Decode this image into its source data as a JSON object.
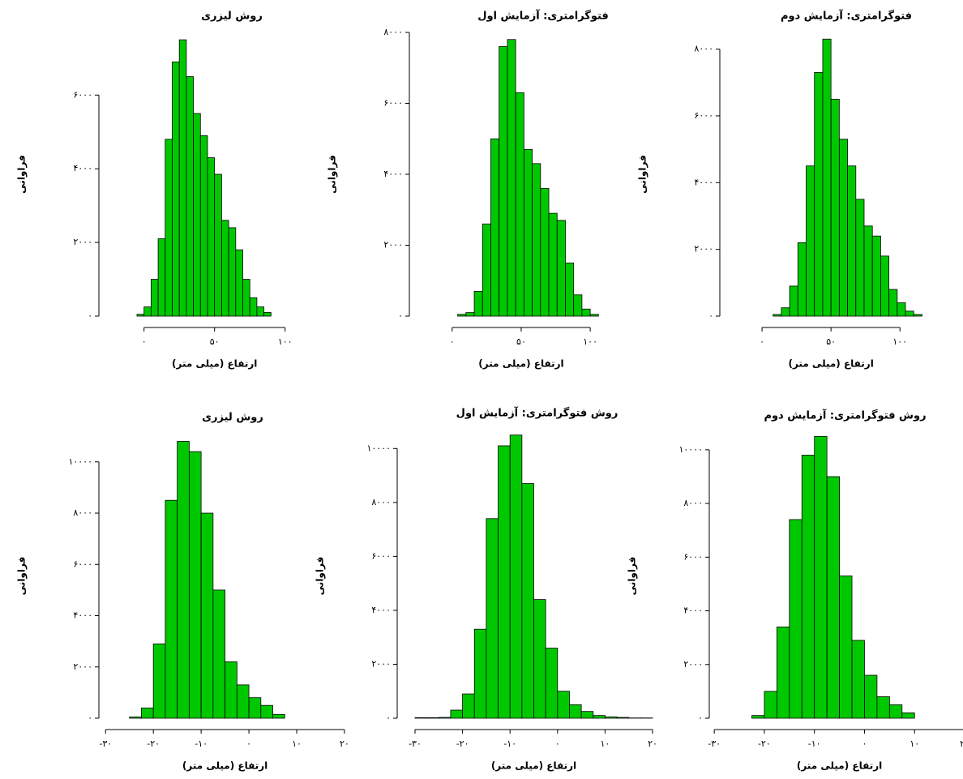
{
  "chart_data": [
    {
      "type": "histogram",
      "title": "روش لیزری",
      "xlabel": "ارتفاع (میلی متر)",
      "ylabel": "فراوانی",
      "color": "#00c800",
      "bins": [
        -5,
        0,
        5,
        10,
        15,
        20,
        25,
        30,
        35,
        40,
        45,
        50,
        55,
        60,
        65,
        70,
        75,
        80,
        85,
        90
      ],
      "values": [
        50,
        250,
        1000,
        2100,
        4800,
        6900,
        7500,
        6500,
        5500,
        4900,
        4300,
        3850,
        2600,
        2400,
        1800,
        1000,
        500,
        250,
        100
      ],
      "xlim": [
        -32,
        145
      ],
      "ylim": [
        0,
        7700
      ],
      "xticks": [
        {
          "value": 0,
          "label": "۰"
        },
        {
          "value": 50,
          "label": "۵۰"
        },
        {
          "value": 100,
          "label": "۱۰۰"
        }
      ],
      "yticks": [
        {
          "value": 0,
          "label": "۰"
        },
        {
          "value": 2000,
          "label": "۲۰۰۰"
        },
        {
          "value": 4000,
          "label": "۴۰۰۰"
        },
        {
          "value": 6000,
          "label": "۶۰۰۰"
        }
      ]
    },
    {
      "type": "histogram",
      "title": "فتوگرامتری: آزمایش اول",
      "xlabel": "ارتفاع (میلی متر)",
      "ylabel": "فراوانی",
      "color": "#00c800",
      "bins": [
        4,
        10,
        16,
        22,
        28,
        34,
        40,
        46,
        52,
        58,
        64,
        70,
        76,
        82,
        88,
        94,
        100,
        106
      ],
      "values": [
        50,
        100,
        700,
        2600,
        5000,
        7600,
        7800,
        6300,
        4700,
        4300,
        3600,
        2900,
        2700,
        1500,
        600,
        200,
        50
      ],
      "xlim": [
        -31,
        151
      ],
      "ylim": [
        0,
        8000
      ],
      "xticks": [
        {
          "value": 0,
          "label": "۰"
        },
        {
          "value": 50,
          "label": "۵۰"
        },
        {
          "value": 100,
          "label": "۱۰۰"
        }
      ],
      "yticks": [
        {
          "value": 0,
          "label": "۰"
        },
        {
          "value": 2000,
          "label": "۲۰۰۰"
        },
        {
          "value": 4000,
          "label": "۴۰۰۰"
        },
        {
          "value": 6000,
          "label": "۶۰۰۰"
        },
        {
          "value": 8000,
          "label": "۸۰۰۰"
        }
      ]
    },
    {
      "type": "histogram",
      "title": "فتوگرامتری: آزمایش دوم",
      "xlabel": "ارتفاع (میلی متر)",
      "ylabel": "فراوانی",
      "color": "#00c800",
      "bins": [
        8,
        14,
        20,
        26,
        32,
        38,
        44,
        50,
        56,
        62,
        68,
        74,
        80,
        86,
        92,
        98,
        104,
        110,
        116
      ],
      "values": [
        50,
        250,
        900,
        2200,
        4500,
        7300,
        8300,
        6500,
        5300,
        4500,
        3500,
        2700,
        2400,
        1800,
        800,
        400,
        150,
        50
      ],
      "xlim": [
        -30.6,
        141
      ],
      "ylim": [
        0,
        8500
      ],
      "xticks": [
        {
          "value": 0,
          "label": "۰"
        },
        {
          "value": 50,
          "label": "۵۰"
        },
        {
          "value": 100,
          "label": "۱۰۰"
        }
      ],
      "yticks": [
        {
          "value": 0,
          "label": "۰"
        },
        {
          "value": 2000,
          "label": "۲۰۰۰"
        },
        {
          "value": 4000,
          "label": "۴۰۰۰"
        },
        {
          "value": 6000,
          "label": "۶۰۰۰"
        },
        {
          "value": 8000,
          "label": "۸۰۰۰"
        }
      ]
    },
    {
      "type": "histogram",
      "title": "روش لیزری",
      "xlabel": "ارتفاع (میلی متر)",
      "ylabel": "فراوانی",
      "color": "#00c800",
      "bins": [
        -25,
        -22.5,
        -20,
        -17.5,
        -15,
        -12.5,
        -10,
        -7.5,
        -5,
        -2.5,
        0,
        2.5,
        5,
        7.5
      ],
      "values": [
        50,
        400,
        2900,
        8500,
        10800,
        10400,
        8000,
        5000,
        2200,
        1300,
        800,
        500,
        150
      ],
      "xlim": [
        -31.4,
        21.2
      ],
      "ylim": [
        0,
        11100
      ],
      "xticks": [
        {
          "value": -30,
          "label": "-۳۰"
        },
        {
          "value": -20,
          "label": "-۲۰"
        },
        {
          "value": -10,
          "label": "-۱۰"
        },
        {
          "value": 0,
          "label": "۰"
        },
        {
          "value": 10,
          "label": "۱۰"
        },
        {
          "value": 20,
          "label": "۲۰"
        }
      ],
      "yticks": [
        {
          "value": 0,
          "label": "۰"
        },
        {
          "value": 2000,
          "label": "۲۰۰۰"
        },
        {
          "value": 4000,
          "label": "۴۰۰۰"
        },
        {
          "value": 6000,
          "label": "۶۰۰۰"
        },
        {
          "value": 8000,
          "label": "۸۰۰۰"
        },
        {
          "value": 10000,
          "label": "۱۰۰۰۰"
        }
      ]
    },
    {
      "type": "histogram",
      "title": "روش فتوگرامتری: آزمایش اول",
      "xlabel": "ارتفاع (میلی متر)",
      "ylabel": "فراوانی",
      "color": "#00c800",
      "bins": [
        -30,
        -27.5,
        -25,
        -22.5,
        -20,
        -17.5,
        -15,
        -12.5,
        -10,
        -7.5,
        -5,
        -2.5,
        0,
        2.5,
        5,
        7.5,
        10,
        12.5,
        15,
        17.5,
        20
      ],
      "values": [
        20,
        20,
        30,
        300,
        900,
        3300,
        7400,
        10100,
        10500,
        8700,
        4400,
        2600,
        1000,
        500,
        250,
        100,
        50,
        30,
        10,
        10
      ],
      "xlim": [
        -33.75,
        21.7
      ],
      "ylim": [
        0,
        10550
      ],
      "xticks": [
        {
          "value": -30,
          "label": "-۳۰"
        },
        {
          "value": -20,
          "label": "-۲۰"
        },
        {
          "value": -10,
          "label": "-۱۰"
        },
        {
          "value": 0,
          "label": "۰"
        },
        {
          "value": 10,
          "label": "۱۰"
        },
        {
          "value": 20,
          "label": "۲۰"
        }
      ],
      "yticks": [
        {
          "value": 0,
          "label": "۰"
        },
        {
          "value": 2000,
          "label": "۲۰۰۰"
        },
        {
          "value": 4000,
          "label": "۴۰۰۰"
        },
        {
          "value": 6000,
          "label": "۶۰۰۰"
        },
        {
          "value": 8000,
          "label": "۸۰۰۰"
        },
        {
          "value": 10000,
          "label": "۱۰۰۰۰"
        }
      ]
    },
    {
      "type": "histogram",
      "title": "روش فتوگرامتری: آزمایش دوم",
      "xlabel": "ارتفاع (میلی متر)",
      "ylabel": "فراوانی",
      "color": "#00c800",
      "bins": [
        -22.5,
        -20,
        -17.5,
        -15,
        -12.5,
        -10,
        -7.5,
        -5,
        -2.5,
        0,
        2.5,
        5,
        7.5,
        10
      ],
      "values": [
        100,
        1000,
        3400,
        7400,
        9800,
        10500,
        9000,
        5300,
        2900,
        1600,
        800,
        500,
        200
      ],
      "xlim": [
        -31,
        20
      ],
      "ylim": [
        0,
        10600
      ],
      "xticks": [
        {
          "value": -30,
          "label": "-۳۰"
        },
        {
          "value": -20,
          "label": "-۲۰"
        },
        {
          "value": -10,
          "label": "-۱۰"
        },
        {
          "value": 0,
          "label": "۰"
        },
        {
          "value": 10,
          "label": "۱۰"
        },
        {
          "value": 20,
          "label": "۲۰"
        }
      ],
      "yticks": [
        {
          "value": 0,
          "label": "۰"
        },
        {
          "value": 2000,
          "label": "۲۰۰۰"
        },
        {
          "value": 4000,
          "label": "۴۰۰۰"
        },
        {
          "value": 6000,
          "label": "۶۰۰۰"
        },
        {
          "value": 8000,
          "label": "۸۰۰۰"
        },
        {
          "value": 10000,
          "label": "۱۰۰۰۰"
        }
      ]
    }
  ]
}
